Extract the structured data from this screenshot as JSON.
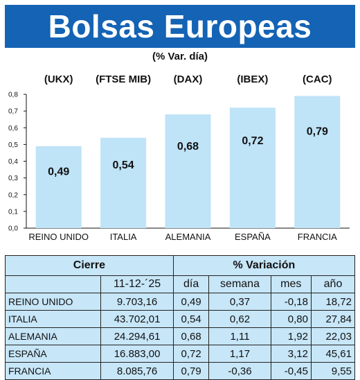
{
  "header": {
    "title": "Bolsas Europeas",
    "subtitle": "(% Var. día)"
  },
  "chart_data": {
    "type": "bar",
    "title": "Bolsas Europeas",
    "subtitle": "(% Var. día)",
    "tickers": [
      "(UKX)",
      "(FTSE MIB)",
      "(DAX)",
      "(IBEX)",
      "(CAC)"
    ],
    "categories": [
      "REINO UNIDO",
      "ITALIA",
      "ALEMANIA",
      "ESPAÑA",
      "FRANCIA"
    ],
    "values": [
      0.49,
      0.54,
      0.68,
      0.72,
      0.79
    ],
    "value_labels": [
      "0,49",
      "0,54",
      "0,68",
      "0,72",
      "0,79"
    ],
    "ylim": [
      0,
      0.8
    ],
    "yticks": [
      "0,0",
      "0,1",
      "0,2",
      "0,3",
      "0,4",
      "0,5",
      "0,6",
      "0,7",
      "0,8"
    ],
    "bar_color": "#bfe3f7",
    "grid": false,
    "legend": "none"
  },
  "table": {
    "group_headers": {
      "cierre": "Cierre",
      "variacion": "% Variación"
    },
    "date": "11-12-´25",
    "columns": [
      "día",
      "semana",
      "mes",
      "año"
    ],
    "rows": [
      {
        "name": "REINO UNIDO",
        "cierre": "9.703,16",
        "dia": "0,49",
        "semana": "0,37",
        "mes": "-0,18",
        "ano": "18,72"
      },
      {
        "name": "ITALIA",
        "cierre": "43.702,01",
        "dia": "0,54",
        "semana": "0,62",
        "mes": "0,80",
        "ano": "27,84"
      },
      {
        "name": "ALEMANIA",
        "cierre": "24.294,61",
        "dia": "0,68",
        "semana": "1,11",
        "mes": "1,92",
        "ano": "22,03"
      },
      {
        "name": "ESPAÑA",
        "cierre": "16.883,00",
        "dia": "0,72",
        "semana": "1,17",
        "mes": "3,12",
        "ano": "45,61"
      },
      {
        "name": "FRANCIA",
        "cierre": "8.085,76",
        "dia": "0,79",
        "semana": "-0,36",
        "mes": "-0,45",
        "ano": "9,55"
      }
    ]
  },
  "colors": {
    "banner": "#1463b4",
    "bar": "#bfe3f7",
    "table_bg": "#c7e6f8"
  }
}
